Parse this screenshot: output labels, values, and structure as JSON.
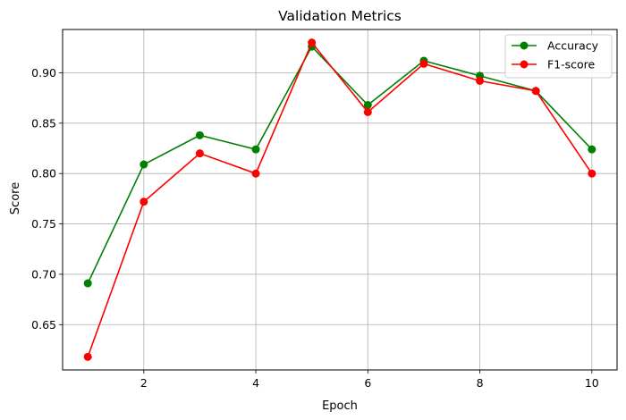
{
  "chart_data": {
    "type": "line",
    "title": "Validation Metrics",
    "xlabel": "Epoch",
    "ylabel": "Score",
    "x": [
      1,
      2,
      3,
      4,
      5,
      6,
      7,
      8,
      9,
      10
    ],
    "xlim": [
      0.55,
      10.45
    ],
    "ylim": [
      0.605,
      0.943
    ],
    "xticks": [
      2,
      4,
      6,
      8,
      10
    ],
    "yticks": [
      0.65,
      0.7,
      0.75,
      0.8,
      0.85,
      0.9
    ],
    "xtick_labels": [
      "2",
      "4",
      "6",
      "8",
      "10"
    ],
    "ytick_labels": [
      "0.65",
      "0.70",
      "0.75",
      "0.80",
      "0.85",
      "0.90"
    ],
    "grid": true,
    "legend_position": "top-right",
    "series": [
      {
        "name": "Accuracy",
        "color": "#008000",
        "marker": "circle",
        "values": [
          0.691,
          0.809,
          0.838,
          0.824,
          0.926,
          0.868,
          0.912,
          0.897,
          0.882,
          0.824
        ]
      },
      {
        "name": "F1-score",
        "color": "#ff0000",
        "marker": "circle",
        "values": [
          0.618,
          0.772,
          0.82,
          0.8,
          0.93,
          0.861,
          0.909,
          0.892,
          0.882,
          0.8
        ]
      }
    ]
  }
}
